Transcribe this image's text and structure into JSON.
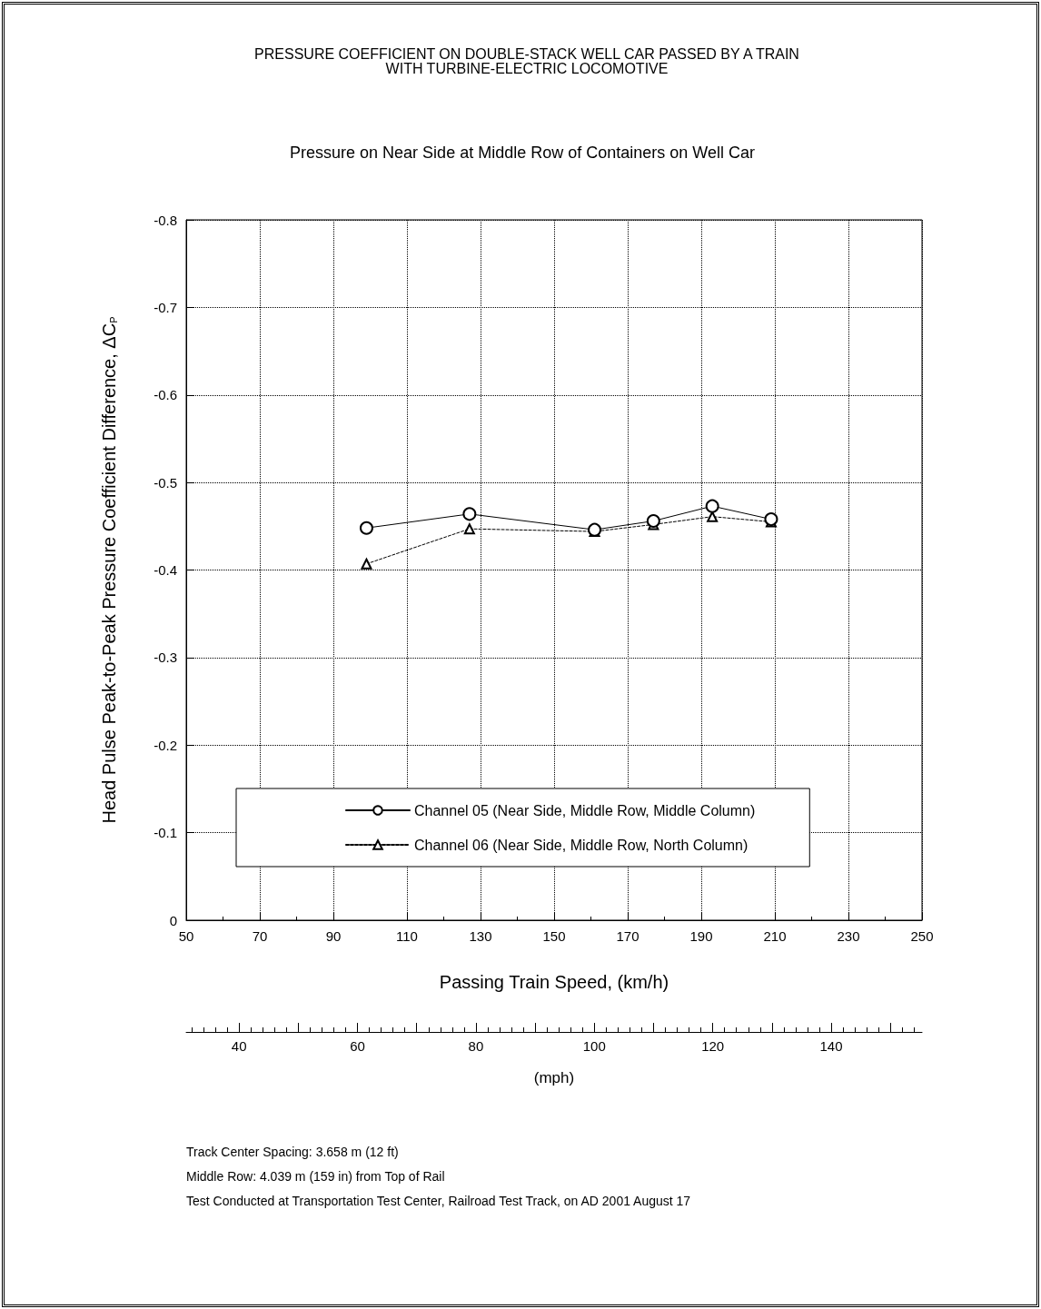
{
  "chart_data": {
    "type": "line",
    "title": "PRESSURE COEFFICIENT ON DOUBLE-STACK WELL CAR PASSED BY A TRAIN WITH TURBINE-ELECTRIC LOCOMOTIVE",
    "subtitle": "Pressure on Near Side at Middle Row of Containers on Well Car",
    "xlabel": "Passing Train Speed, (km/h)",
    "ylabel": "Head Pulse Peak-to-Peak Pressure Coefficient Difference, ΔC$_{P}$",
    "x2label": "(mph)",
    "x": [
      99,
      127,
      161,
      177,
      193,
      209
    ],
    "series": [
      {
        "name": "Channel 05 (Near Side, Middle Row, Middle Column)",
        "color": "#000000",
        "marker": "circle",
        "line_style": "solid",
        "values": [
          -0.448,
          -0.464,
          -0.446,
          -0.456,
          -0.473,
          -0.458
        ]
      },
      {
        "name": "Channel 06 (Near Side, Middle Row, North Column)",
        "color": "#000000",
        "marker": "triangle",
        "line_style": "dashed",
        "values": [
          -0.407,
          -0.447,
          -0.444,
          -0.452,
          -0.461,
          -0.455
        ]
      }
    ],
    "xlim": [
      50,
      250
    ],
    "xticks": [
      50,
      70,
      90,
      110,
      130,
      150,
      170,
      190,
      210,
      230,
      250
    ],
    "ylim": [
      0,
      -0.8
    ],
    "yticks": [
      0,
      -0.1,
      -0.2,
      -0.3,
      -0.4,
      -0.5,
      -0.6,
      -0.7,
      -0.8
    ],
    "x2lim": [
      31.07,
      155.34
    ],
    "x2ticks": [
      40,
      60,
      80,
      100,
      120,
      140
    ],
    "grid": true,
    "legend": "bottom",
    "annotations": [
      "Track Center Spacing: 3.658 m (12 ft)",
      "Middle Row: 4.039 m (159 in) from Top of Rail",
      "Test Conducted at Transportation Test Center, Railroad Test Track, on AD 2001 August 17"
    ]
  }
}
